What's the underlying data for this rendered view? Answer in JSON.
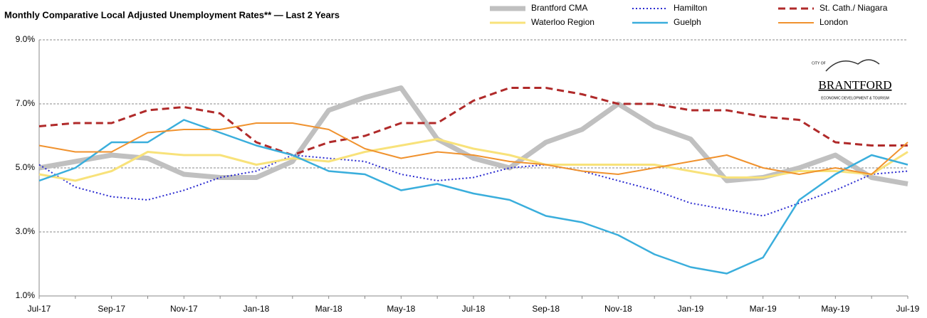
{
  "chart_data": {
    "type": "line",
    "title": "Monthly Comparative Local Adjusted Unemployment Rates**  —  Last 2 Years",
    "categories": [
      "Jul-17",
      null,
      "Sep-17",
      null,
      "Nov-17",
      null,
      "Jan-18",
      null,
      "Mar-18",
      null,
      "May-18",
      null,
      "Jul-18",
      null,
      "Sep-18",
      null,
      "Nov-18",
      null,
      "Jan-19",
      null,
      "Mar-19",
      null,
      "May-19",
      null,
      "Jul-19"
    ],
    "ylim": [
      1,
      9
    ],
    "yticks": [
      {
        "value": 1,
        "label": "1.0%"
      },
      {
        "value": 3,
        "label": "3.0%"
      },
      {
        "value": 5,
        "label": "5.0%"
      },
      {
        "value": 7,
        "label": "7.0%"
      },
      {
        "value": 9,
        "label": "9.0%"
      }
    ],
    "grid": true,
    "legend": "top",
    "series": [
      {
        "name": "Brantford CMA",
        "color": "#c0c0c0",
        "width": 7,
        "dash": "none",
        "values": [
          5.0,
          5.2,
          5.4,
          5.3,
          4.8,
          4.7,
          4.7,
          5.2,
          6.8,
          7.2,
          7.5,
          5.9,
          5.3,
          5.0,
          5.8,
          6.2,
          7.0,
          6.3,
          5.9,
          4.6,
          4.7,
          5.0,
          5.4,
          4.7,
          4.5
        ]
      },
      {
        "name": "Hamilton",
        "color": "#2a2ad0",
        "width": 2,
        "dash": "2 3",
        "values": [
          5.1,
          4.4,
          4.1,
          4.0,
          4.3,
          4.7,
          4.9,
          5.4,
          5.3,
          5.2,
          4.8,
          4.6,
          4.7,
          5.0,
          5.1,
          4.9,
          4.6,
          4.3,
          3.9,
          3.7,
          3.5,
          3.9,
          4.3,
          4.8,
          4.9
        ]
      },
      {
        "name": "St. Cath./ Niagara",
        "color": "#b02a2a",
        "width": 3,
        "dash": "10 6",
        "values": [
          6.3,
          6.4,
          6.4,
          6.8,
          6.9,
          6.7,
          5.8,
          5.4,
          5.8,
          6.0,
          6.4,
          6.4,
          7.1,
          7.5,
          7.5,
          7.3,
          7.0,
          7.0,
          6.8,
          6.8,
          6.6,
          6.5,
          5.8,
          5.7,
          5.7
        ]
      },
      {
        "name": "Waterloo Region",
        "color": "#f8e27a",
        "width": 3,
        "dash": "none",
        "values": [
          4.8,
          4.6,
          4.9,
          5.5,
          5.4,
          5.4,
          5.1,
          5.3,
          5.2,
          5.5,
          5.7,
          5.9,
          5.6,
          5.4,
          5.1,
          5.1,
          5.1,
          5.1,
          4.9,
          4.7,
          4.7,
          4.9,
          4.9,
          4.8,
          5.5
        ]
      },
      {
        "name": "Guelph",
        "color": "#3aaedc",
        "width": 2.5,
        "dash": "none",
        "values": [
          4.6,
          5.0,
          5.8,
          5.8,
          6.5,
          6.1,
          5.7,
          5.4,
          4.9,
          4.8,
          4.3,
          4.5,
          4.2,
          4.0,
          3.5,
          3.3,
          2.9,
          2.3,
          1.9,
          1.7,
          2.2,
          4.0,
          4.8,
          5.4,
          5.1
        ]
      },
      {
        "name": "London",
        "color": "#f0922e",
        "width": 2,
        "dash": "none",
        "values": [
          5.7,
          5.5,
          5.5,
          6.1,
          6.2,
          6.2,
          6.4,
          6.4,
          6.2,
          5.6,
          5.3,
          5.5,
          5.4,
          5.2,
          5.1,
          4.9,
          4.8,
          5.0,
          5.2,
          5.4,
          5.0,
          4.8,
          5.0,
          4.8,
          5.8
        ]
      }
    ]
  },
  "logo": {
    "top": "CITY OF",
    "name": "BRANTFORD",
    "tagline": "ECONOMIC DEVELOPMENT & TOURISM"
  }
}
